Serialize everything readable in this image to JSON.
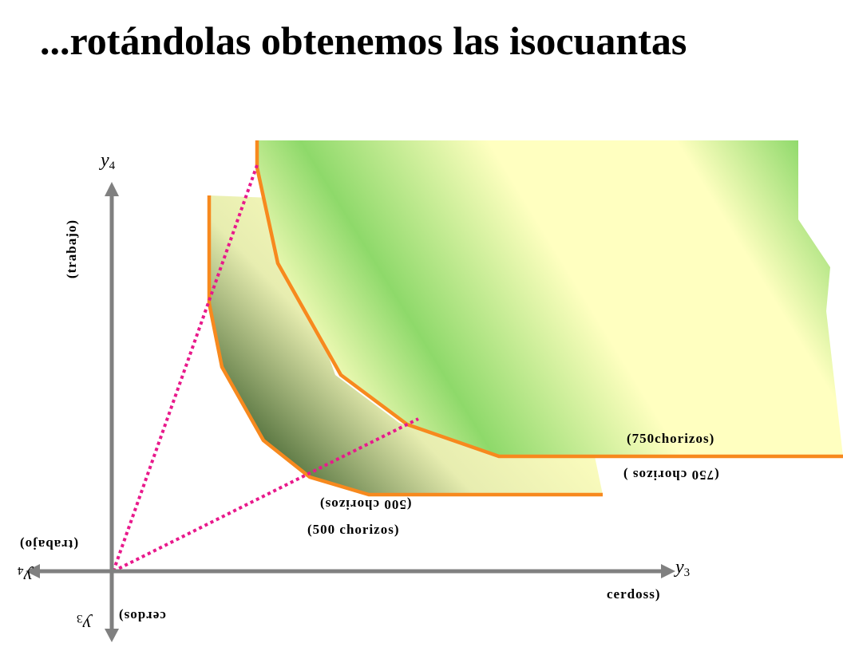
{
  "title": "...rotándolas obtenemos las isocuantas",
  "colors": {
    "isoquant_outline": "#F7891E",
    "ray": "#E8198B",
    "axis": "#808080",
    "fill_light": "#FFFFC0",
    "fill_green": "#8ED96A",
    "fill_dark": "#5E7A45"
  },
  "axes": {
    "vertical": {
      "var": "y",
      "sub": "4",
      "label": "(trabajo)"
    },
    "horizontal": {
      "var": "y",
      "sub": "3",
      "label": "cerdoss)"
    },
    "mirrored_vertical": {
      "var": "y",
      "sub": "4",
      "label": "(trabajo)"
    },
    "mirrored_horizontal": {
      "var": "y",
      "sub": "3",
      "label": "cerdos)"
    }
  },
  "isoquants": {
    "outer": {
      "label": "(750chorizos)",
      "mirrored_label": "(750 chorizos )"
    },
    "inner": {
      "label": "(500 chorizos)",
      "mirrored_label": "(500 chorizos)"
    }
  }
}
